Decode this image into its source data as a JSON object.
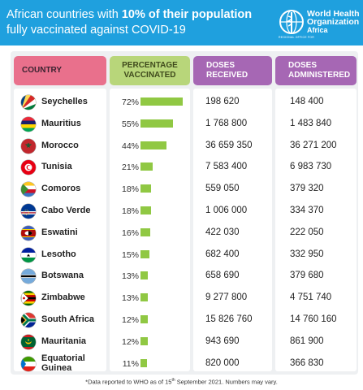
{
  "title": {
    "part1": "African countries with ",
    "bold": "10% of their population",
    "part2": "fully vaccinated against COVID-19"
  },
  "logo": {
    "line1": "World Health",
    "line2": "Organization",
    "line3": "Africa",
    "sub": "REGIONAL OFFICE FOR",
    "icon": "who-emblem-icon"
  },
  "headers": {
    "country": "COUNTRY",
    "pct_line1": "PERCENTAGE",
    "pct_line2": "VACCINATED",
    "rec_line1": "DOSES",
    "rec_line2": "RECEIVED",
    "adm_line1": "DOSES",
    "adm_line2": "ADMINISTERED"
  },
  "chart_data": {
    "type": "table",
    "bar_max": 100,
    "colors": {
      "bar": "#90c843",
      "country_header": "#e9708c",
      "pct_header": "#b8d67a",
      "doses_header": "#a667b4",
      "banner": "#1fa0de"
    },
    "rows": [
      {
        "country": "Seychelles",
        "pct": 72,
        "pct_label": "72%",
        "received": "198 620",
        "administered": "148 400"
      },
      {
        "country": "Mauritius",
        "pct": 55,
        "pct_label": "55%",
        "received": "1 768 800",
        "administered": "1 483 840"
      },
      {
        "country": "Morocco",
        "pct": 44,
        "pct_label": "44%",
        "received": "36 659 350",
        "administered": "36 271 200"
      },
      {
        "country": "Tunisia",
        "pct": 21,
        "pct_label": "21%",
        "received": "7 583 400",
        "administered": "6 983 730"
      },
      {
        "country": "Comoros",
        "pct": 18,
        "pct_label": "18%",
        "received": "559 050",
        "administered": "379 320"
      },
      {
        "country": "Cabo Verde",
        "pct": 18,
        "pct_label": "18%",
        "received": "1 006 000",
        "administered": "334 370"
      },
      {
        "country": "Eswatini",
        "pct": 16,
        "pct_label": "16%",
        "received": "422 030",
        "administered": "222 050"
      },
      {
        "country": "Lesotho",
        "pct": 15,
        "pct_label": "15%",
        "received": "682 400",
        "administered": "332 950"
      },
      {
        "country": "Botswana",
        "pct": 13,
        "pct_label": "13%",
        "received": "658 690",
        "administered": "379 680"
      },
      {
        "country": "Zimbabwe",
        "pct": 13,
        "pct_label": "13%",
        "received": "9 277 800",
        "administered": "4 751 740"
      },
      {
        "country": "South Africa",
        "pct": 12,
        "pct_label": "12%",
        "received": "15 826 760",
        "administered": "14 760 160"
      },
      {
        "country": "Mauritania",
        "pct": 12,
        "pct_label": "12%",
        "received": "943 690",
        "administered": "861 900"
      },
      {
        "country": "Equatorial Guinea",
        "country_line1": "Equatorial",
        "country_line2": "Guinea",
        "pct": 11,
        "pct_label": "11%",
        "received": "820 000",
        "administered": "366 830"
      }
    ]
  },
  "footnote": {
    "pre": "*Data reported to WHO as of ",
    "day": "15",
    "sup": "th",
    "post": " September 2021. Numbers may vary."
  }
}
